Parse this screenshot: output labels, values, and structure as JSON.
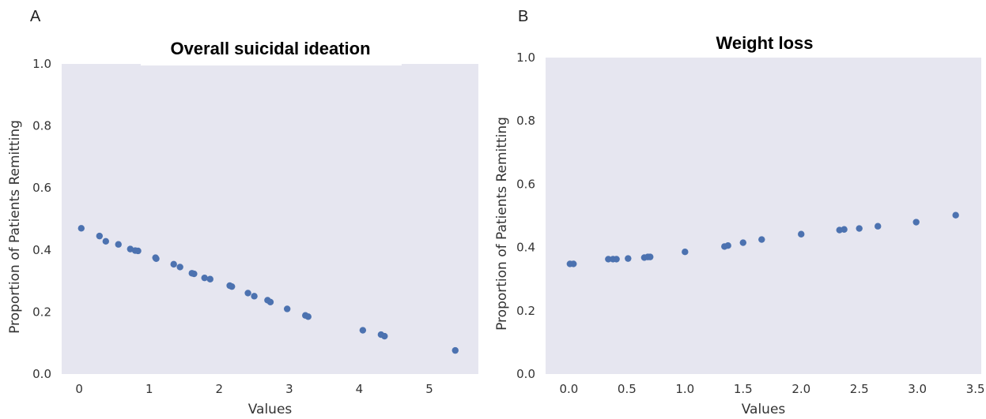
{
  "panels": [
    "A",
    "B"
  ],
  "chart_data": [
    {
      "type": "scatter",
      "title": "Overall suicidal ideation",
      "xlabel": "Values",
      "ylabel": "Proportion of Patients Remitting",
      "xlim": [
        -0.25,
        5.7
      ],
      "ylim": [
        0.0,
        1.0
      ],
      "xticks": [
        0,
        1,
        2,
        3,
        4,
        5
      ],
      "xtick_labels": [
        "0",
        "1",
        "2",
        "3",
        "4",
        "5"
      ],
      "yticks": [
        0.0,
        0.2,
        0.4,
        0.6,
        0.8,
        1.0
      ],
      "ytick_labels": [
        "0.0",
        "0.2",
        "0.4",
        "0.6",
        "0.8",
        "1.0"
      ],
      "grid": false,
      "color": "#4c72b0",
      "background": "#e6e6f0",
      "x": [
        0.03,
        0.29,
        0.38,
        0.56,
        0.73,
        0.8,
        0.84,
        1.09,
        1.1,
        1.35,
        1.44,
        1.61,
        1.64,
        1.79,
        1.87,
        2.15,
        2.18,
        2.41,
        2.5,
        2.69,
        2.73,
        2.97,
        3.23,
        3.27,
        4.05,
        4.31,
        4.36,
        5.37
      ],
      "y": [
        0.47,
        0.445,
        0.428,
        0.418,
        0.403,
        0.398,
        0.397,
        0.375,
        0.372,
        0.354,
        0.345,
        0.325,
        0.323,
        0.31,
        0.306,
        0.285,
        0.282,
        0.261,
        0.251,
        0.238,
        0.232,
        0.21,
        0.189,
        0.185,
        0.141,
        0.127,
        0.122,
        0.076
      ]
    },
    {
      "type": "scatter",
      "title": "Weight loss",
      "xlabel": "Values",
      "ylabel": "Proportion of Patients Remitting",
      "xlim": [
        -0.2,
        3.55
      ],
      "ylim": [
        0.0,
        1.0
      ],
      "xticks": [
        0.0,
        0.5,
        1.0,
        1.5,
        2.0,
        2.5,
        3.0,
        3.5
      ],
      "xtick_labels": [
        "0.0",
        "0.5",
        "1.0",
        "1.5",
        "2.0",
        "2.5",
        "3.0",
        "3.5"
      ],
      "yticks": [
        0.0,
        0.2,
        0.4,
        0.6,
        0.8,
        1.0
      ],
      "ytick_labels": [
        "0.0",
        "0.2",
        "0.4",
        "0.6",
        "0.8",
        "1.0"
      ],
      "grid": false,
      "color": "#4c72b0",
      "background": "#e6e6f0",
      "x": [
        0.01,
        0.04,
        0.34,
        0.38,
        0.41,
        0.51,
        0.65,
        0.68,
        0.7,
        1.0,
        1.34,
        1.37,
        1.5,
        1.66,
        2.0,
        2.33,
        2.37,
        2.5,
        2.66,
        2.99,
        3.33
      ],
      "y": [
        0.348,
        0.348,
        0.363,
        0.363,
        0.363,
        0.365,
        0.368,
        0.37,
        0.37,
        0.386,
        0.403,
        0.406,
        0.415,
        0.425,
        0.442,
        0.455,
        0.457,
        0.46,
        0.467,
        0.48,
        0.502
      ]
    }
  ]
}
